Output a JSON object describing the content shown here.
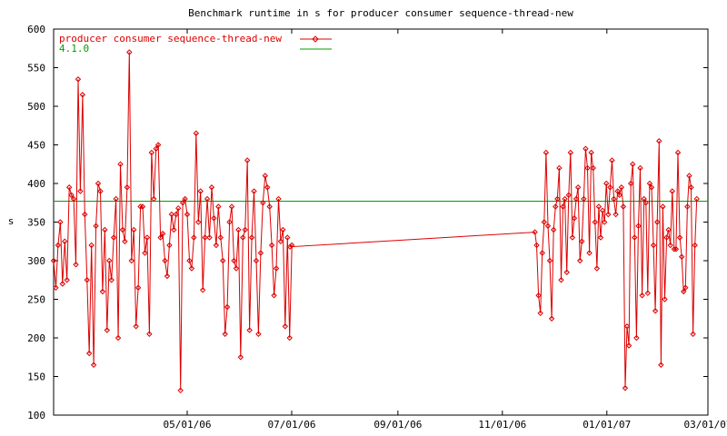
{
  "chart_data": {
    "type": "line",
    "title": "Benchmark runtime in s for producer consumer sequence-thread-new",
    "xlabel": "",
    "ylabel": "s",
    "xlim": [
      "2006-02-12",
      "2007-03-01"
    ],
    "ylim": [
      100,
      600
    ],
    "yticks": [
      100,
      150,
      200,
      250,
      300,
      350,
      400,
      450,
      500,
      550,
      600
    ],
    "xticks": [
      "05/01/06",
      "07/01/06",
      "09/01/06",
      "11/01/06",
      "01/01/07",
      "03/01/07"
    ],
    "grid": false,
    "legend_position": "top-left",
    "series": [
      {
        "name": "producer consumer sequence-thread-new",
        "color": "#dd0000",
        "marker": "diamond",
        "x_start": "2006-02-12",
        "values": [
          300,
          265,
          320,
          350,
          270,
          325,
          275,
          395,
          385,
          380,
          295,
          535,
          390,
          515,
          360,
          275,
          180,
          320,
          165,
          345,
          400,
          390,
          260,
          340,
          210,
          300,
          275,
          330,
          380,
          200,
          425,
          340,
          325,
          395,
          570,
          300,
          340,
          215,
          265,
          370,
          370,
          310,
          330,
          205,
          440,
          380,
          445,
          450,
          330,
          335,
          300,
          280,
          320,
          360,
          340,
          360,
          368,
          132,
          375,
          380,
          360,
          300,
          290,
          330,
          465,
          350,
          390,
          262,
          330,
          380,
          330,
          395,
          355,
          320,
          370,
          330,
          300,
          205,
          240,
          350,
          370,
          300,
          290,
          340,
          175,
          330,
          340,
          430,
          210,
          330,
          390,
          300,
          205,
          310,
          375,
          410,
          395,
          370,
          320,
          255,
          290,
          380,
          325,
          340,
          215,
          330,
          200,
          320
        ],
        "gap_points": [
          [
            "2006-06-30",
            318
          ],
          [
            "2006-11-20",
            337
          ]
        ],
        "x_start2": "2006-11-21",
        "values2": [
          320,
          255,
          232,
          310,
          350,
          440,
          345,
          300,
          225,
          340,
          370,
          380,
          420,
          275,
          370,
          380,
          285,
          385,
          440,
          330,
          355,
          380,
          395,
          300,
          325,
          380,
          445,
          420,
          310,
          440,
          420,
          350,
          290,
          370,
          330,
          365,
          350,
          400,
          360,
          395,
          430,
          380,
          360,
          390,
          385,
          395,
          370,
          135,
          215,
          190,
          400,
          425,
          330,
          200,
          345,
          420,
          255,
          380,
          375,
          258,
          400,
          395,
          320,
          235,
          350,
          455,
          165,
          370,
          250,
          330,
          340,
          320,
          390,
          315,
          315,
          440,
          330,
          305,
          260,
          265,
          370,
          410,
          395,
          205,
          320,
          380
        ]
      },
      {
        "name": "4.1.0",
        "color": "#00a000",
        "values": [
          377
        ]
      }
    ]
  }
}
